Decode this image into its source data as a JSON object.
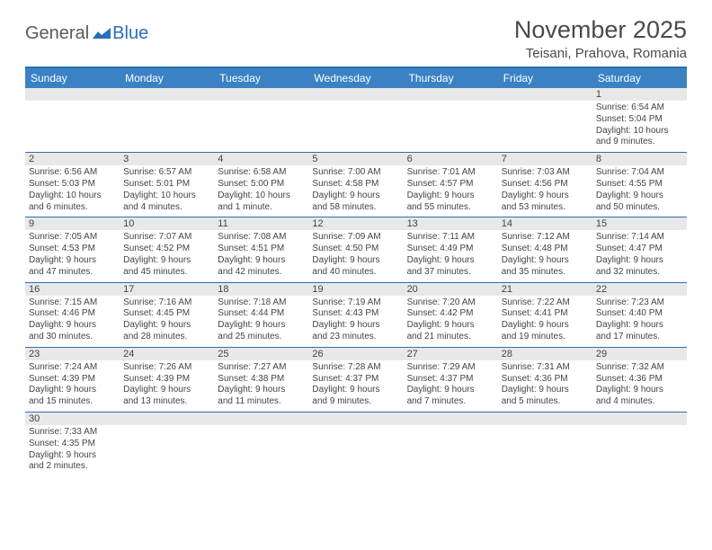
{
  "logo": {
    "text1": "General",
    "text2": "Blue"
  },
  "title": "November 2025",
  "location": "Teisani, Prahova, Romania",
  "day_headers": [
    "Sunday",
    "Monday",
    "Tuesday",
    "Wednesday",
    "Thursday",
    "Friday",
    "Saturday"
  ],
  "colors": {
    "header_bar": "#3a82c4",
    "border": "#2a6fb5",
    "num_bg": "#e8e8e8",
    "text": "#444444"
  },
  "weeks": [
    {
      "nums": [
        "",
        "",
        "",
        "",
        "",
        "",
        "1"
      ],
      "cells": [
        null,
        null,
        null,
        null,
        null,
        null,
        {
          "sunrise": "6:54 AM",
          "sunset": "5:04 PM",
          "daylight": "10 hours and 9 minutes."
        }
      ]
    },
    {
      "nums": [
        "2",
        "3",
        "4",
        "5",
        "6",
        "7",
        "8"
      ],
      "cells": [
        {
          "sunrise": "6:56 AM",
          "sunset": "5:03 PM",
          "daylight": "10 hours and 6 minutes."
        },
        {
          "sunrise": "6:57 AM",
          "sunset": "5:01 PM",
          "daylight": "10 hours and 4 minutes."
        },
        {
          "sunrise": "6:58 AM",
          "sunset": "5:00 PM",
          "daylight": "10 hours and 1 minute."
        },
        {
          "sunrise": "7:00 AM",
          "sunset": "4:58 PM",
          "daylight": "9 hours and 58 minutes."
        },
        {
          "sunrise": "7:01 AM",
          "sunset": "4:57 PM",
          "daylight": "9 hours and 55 minutes."
        },
        {
          "sunrise": "7:03 AM",
          "sunset": "4:56 PM",
          "daylight": "9 hours and 53 minutes."
        },
        {
          "sunrise": "7:04 AM",
          "sunset": "4:55 PM",
          "daylight": "9 hours and 50 minutes."
        }
      ]
    },
    {
      "nums": [
        "9",
        "10",
        "11",
        "12",
        "13",
        "14",
        "15"
      ],
      "cells": [
        {
          "sunrise": "7:05 AM",
          "sunset": "4:53 PM",
          "daylight": "9 hours and 47 minutes."
        },
        {
          "sunrise": "7:07 AM",
          "sunset": "4:52 PM",
          "daylight": "9 hours and 45 minutes."
        },
        {
          "sunrise": "7:08 AM",
          "sunset": "4:51 PM",
          "daylight": "9 hours and 42 minutes."
        },
        {
          "sunrise": "7:09 AM",
          "sunset": "4:50 PM",
          "daylight": "9 hours and 40 minutes."
        },
        {
          "sunrise": "7:11 AM",
          "sunset": "4:49 PM",
          "daylight": "9 hours and 37 minutes."
        },
        {
          "sunrise": "7:12 AM",
          "sunset": "4:48 PM",
          "daylight": "9 hours and 35 minutes."
        },
        {
          "sunrise": "7:14 AM",
          "sunset": "4:47 PM",
          "daylight": "9 hours and 32 minutes."
        }
      ]
    },
    {
      "nums": [
        "16",
        "17",
        "18",
        "19",
        "20",
        "21",
        "22"
      ],
      "cells": [
        {
          "sunrise": "7:15 AM",
          "sunset": "4:46 PM",
          "daylight": "9 hours and 30 minutes."
        },
        {
          "sunrise": "7:16 AM",
          "sunset": "4:45 PM",
          "daylight": "9 hours and 28 minutes."
        },
        {
          "sunrise": "7:18 AM",
          "sunset": "4:44 PM",
          "daylight": "9 hours and 25 minutes."
        },
        {
          "sunrise": "7:19 AM",
          "sunset": "4:43 PM",
          "daylight": "9 hours and 23 minutes."
        },
        {
          "sunrise": "7:20 AM",
          "sunset": "4:42 PM",
          "daylight": "9 hours and 21 minutes."
        },
        {
          "sunrise": "7:22 AM",
          "sunset": "4:41 PM",
          "daylight": "9 hours and 19 minutes."
        },
        {
          "sunrise": "7:23 AM",
          "sunset": "4:40 PM",
          "daylight": "9 hours and 17 minutes."
        }
      ]
    },
    {
      "nums": [
        "23",
        "24",
        "25",
        "26",
        "27",
        "28",
        "29"
      ],
      "cells": [
        {
          "sunrise": "7:24 AM",
          "sunset": "4:39 PM",
          "daylight": "9 hours and 15 minutes."
        },
        {
          "sunrise": "7:26 AM",
          "sunset": "4:39 PM",
          "daylight": "9 hours and 13 minutes."
        },
        {
          "sunrise": "7:27 AM",
          "sunset": "4:38 PM",
          "daylight": "9 hours and 11 minutes."
        },
        {
          "sunrise": "7:28 AM",
          "sunset": "4:37 PM",
          "daylight": "9 hours and 9 minutes."
        },
        {
          "sunrise": "7:29 AM",
          "sunset": "4:37 PM",
          "daylight": "9 hours and 7 minutes."
        },
        {
          "sunrise": "7:31 AM",
          "sunset": "4:36 PM",
          "daylight": "9 hours and 5 minutes."
        },
        {
          "sunrise": "7:32 AM",
          "sunset": "4:36 PM",
          "daylight": "9 hours and 4 minutes."
        }
      ]
    },
    {
      "nums": [
        "30",
        "",
        "",
        "",
        "",
        "",
        ""
      ],
      "cells": [
        {
          "sunrise": "7:33 AM",
          "sunset": "4:35 PM",
          "daylight": "9 hours and 2 minutes."
        },
        null,
        null,
        null,
        null,
        null,
        null
      ]
    }
  ]
}
